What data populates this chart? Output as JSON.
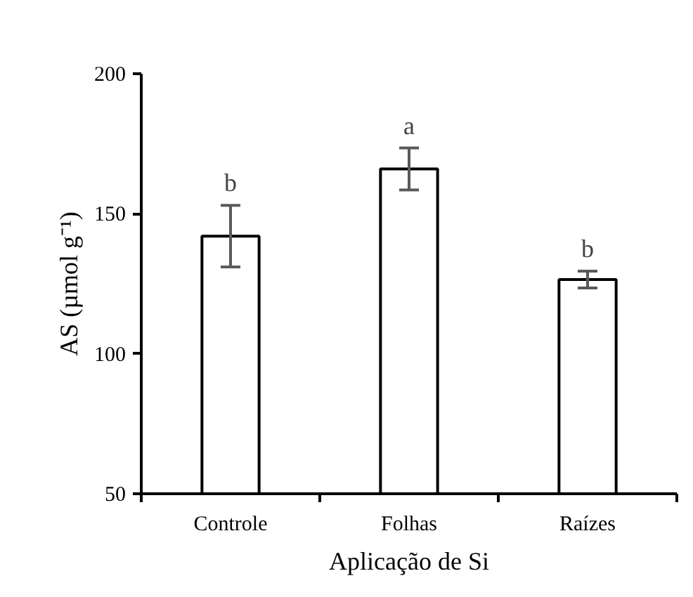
{
  "chart_data": {
    "type": "bar",
    "xlabel": "Aplicação de Si",
    "ylabel": "AS (µmol g⁻¹)",
    "categories": [
      "Controle",
      "Folhas",
      "Raízes"
    ],
    "values": [
      142,
      166,
      126.5
    ],
    "errors": [
      11,
      7.5,
      3
    ],
    "color": "#ffffff",
    "ylim": [
      50,
      200
    ],
    "yticks": [
      50,
      100,
      150,
      200
    ],
    "grid": false,
    "annotations": [
      "b",
      "a",
      "b"
    ]
  }
}
